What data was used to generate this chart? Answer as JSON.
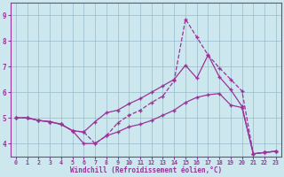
{
  "xlabel": "Windchill (Refroidissement éolien,°C)",
  "background_color": "#cce8ee",
  "line_color": "#993399",
  "grid_color": "#99bbcc",
  "xlim": [
    -0.5,
    23.5
  ],
  "ylim": [
    3.5,
    9.5
  ],
  "xticks": [
    0,
    1,
    2,
    3,
    4,
    5,
    6,
    7,
    8,
    9,
    10,
    11,
    12,
    13,
    14,
    15,
    16,
    17,
    18,
    19,
    20,
    21,
    22,
    23
  ],
  "yticks": [
    4,
    5,
    6,
    7,
    8,
    9
  ],
  "curve_dashed": [
    5.0,
    5.0,
    4.9,
    4.85,
    4.75,
    4.5,
    4.45,
    4.0,
    4.3,
    4.8,
    5.1,
    5.3,
    5.6,
    5.85,
    6.45,
    8.85,
    8.15,
    7.45,
    6.95,
    6.5,
    6.05,
    3.6,
    3.65,
    3.7
  ],
  "curve_solid1": [
    5.0,
    5.0,
    4.9,
    4.85,
    4.75,
    4.5,
    4.45,
    4.85,
    5.2,
    5.3,
    5.55,
    5.75,
    6.0,
    6.25,
    6.5,
    7.05,
    6.55,
    7.45,
    6.6,
    6.1,
    5.45,
    3.6,
    3.65,
    3.7
  ],
  "curve_solid2": [
    5.0,
    5.0,
    4.9,
    4.85,
    4.75,
    4.5,
    4.0,
    4.0,
    4.3,
    4.45,
    4.65,
    4.75,
    4.9,
    5.1,
    5.3,
    5.6,
    5.8,
    5.9,
    5.95,
    5.5,
    5.4,
    3.6,
    3.65,
    3.7
  ]
}
